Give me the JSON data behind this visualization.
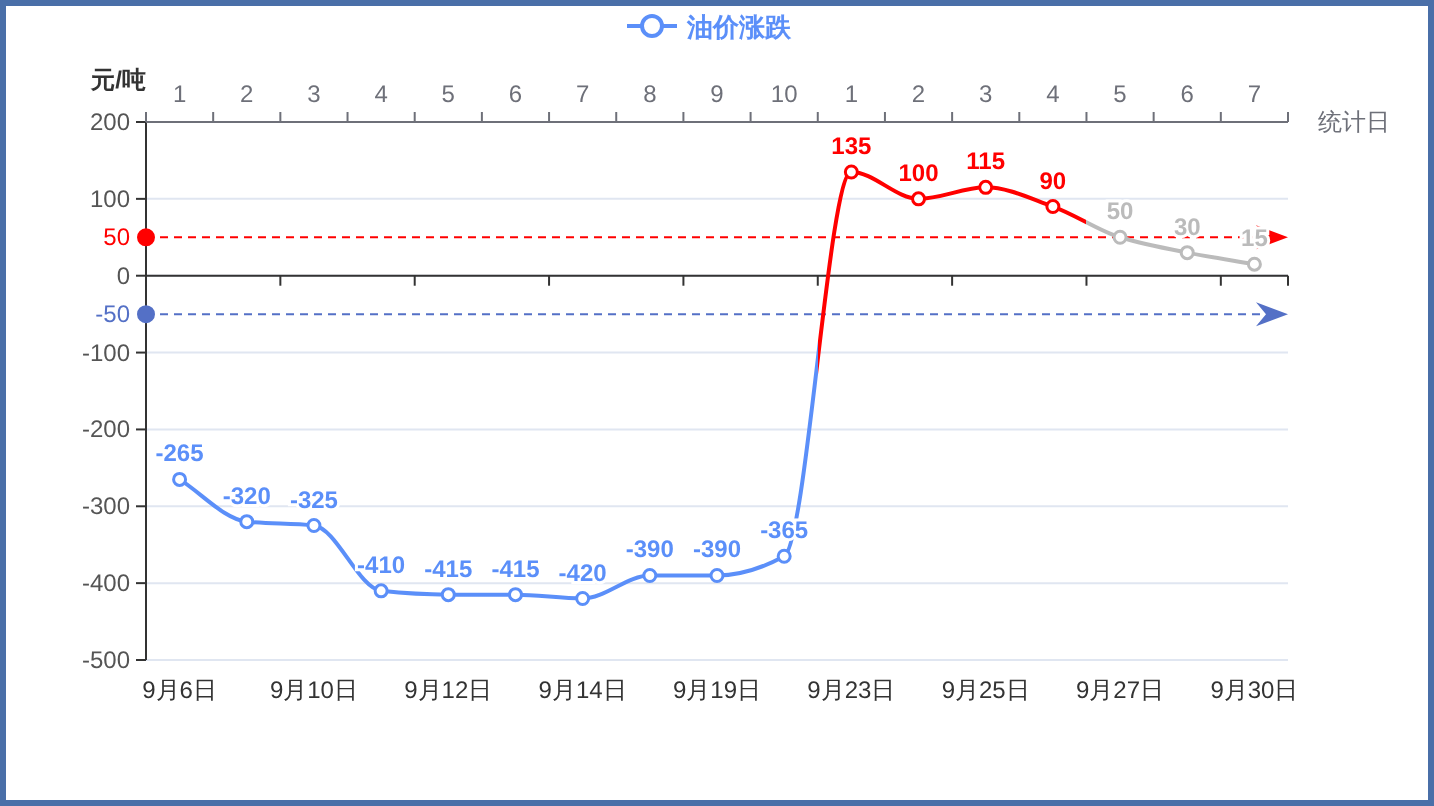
{
  "chart_data": {
    "type": "line",
    "categories": [
      "9月6日",
      null,
      "9月10日",
      null,
      "9月12日",
      null,
      "9月14日",
      null,
      "9月19日",
      null,
      "9月23日",
      null,
      "9月25日",
      null,
      "9月27日",
      null,
      "9月30日"
    ],
    "series": [
      {
        "name": "油价涨跌",
        "color": "#5b8ff9",
        "values": [
          -265,
          -320,
          -325,
          -410,
          -415,
          -415,
          -420,
          -390,
          -390,
          -365,
          135,
          100,
          115,
          90,
          50,
          30,
          15
        ],
        "colors": [
          "#5b8ff9",
          "#5b8ff9",
          "#5b8ff9",
          "#5b8ff9",
          "#5b8ff9",
          "#5b8ff9",
          "#5b8ff9",
          "#5b8ff9",
          "#5b8ff9",
          "#5b8ff9",
          "#ff0000",
          "#ff0000",
          "#ff0000",
          "#ff0000",
          "#bbbbbb",
          "#bbbbbb",
          "#bbbbbb"
        ]
      }
    ],
    "ylabel": "元/吨",
    "x2label": "统计日",
    "ylim": [
      -500,
      200
    ],
    "yticks": [
      -500,
      -400,
      -300,
      -200,
      -100,
      0,
      100,
      200
    ],
    "annotations": [
      "1",
      "2",
      "3",
      "4",
      "5",
      "6",
      "7",
      "8",
      "9",
      "10",
      "1",
      "2",
      "3",
      "4",
      "5",
      "6",
      "7"
    ],
    "ref_lines": [
      {
        "axis": "y",
        "value": 50,
        "label": "50",
        "color": "#ff0000",
        "line_style": "dashed"
      },
      {
        "axis": "y",
        "value": -50,
        "label": "-50",
        "color": "#5470c6",
        "line_style": "dashed"
      }
    ],
    "data_labels": true,
    "grid": "y",
    "legend": "top",
    "marker": "circle",
    "line_style": "solid"
  }
}
